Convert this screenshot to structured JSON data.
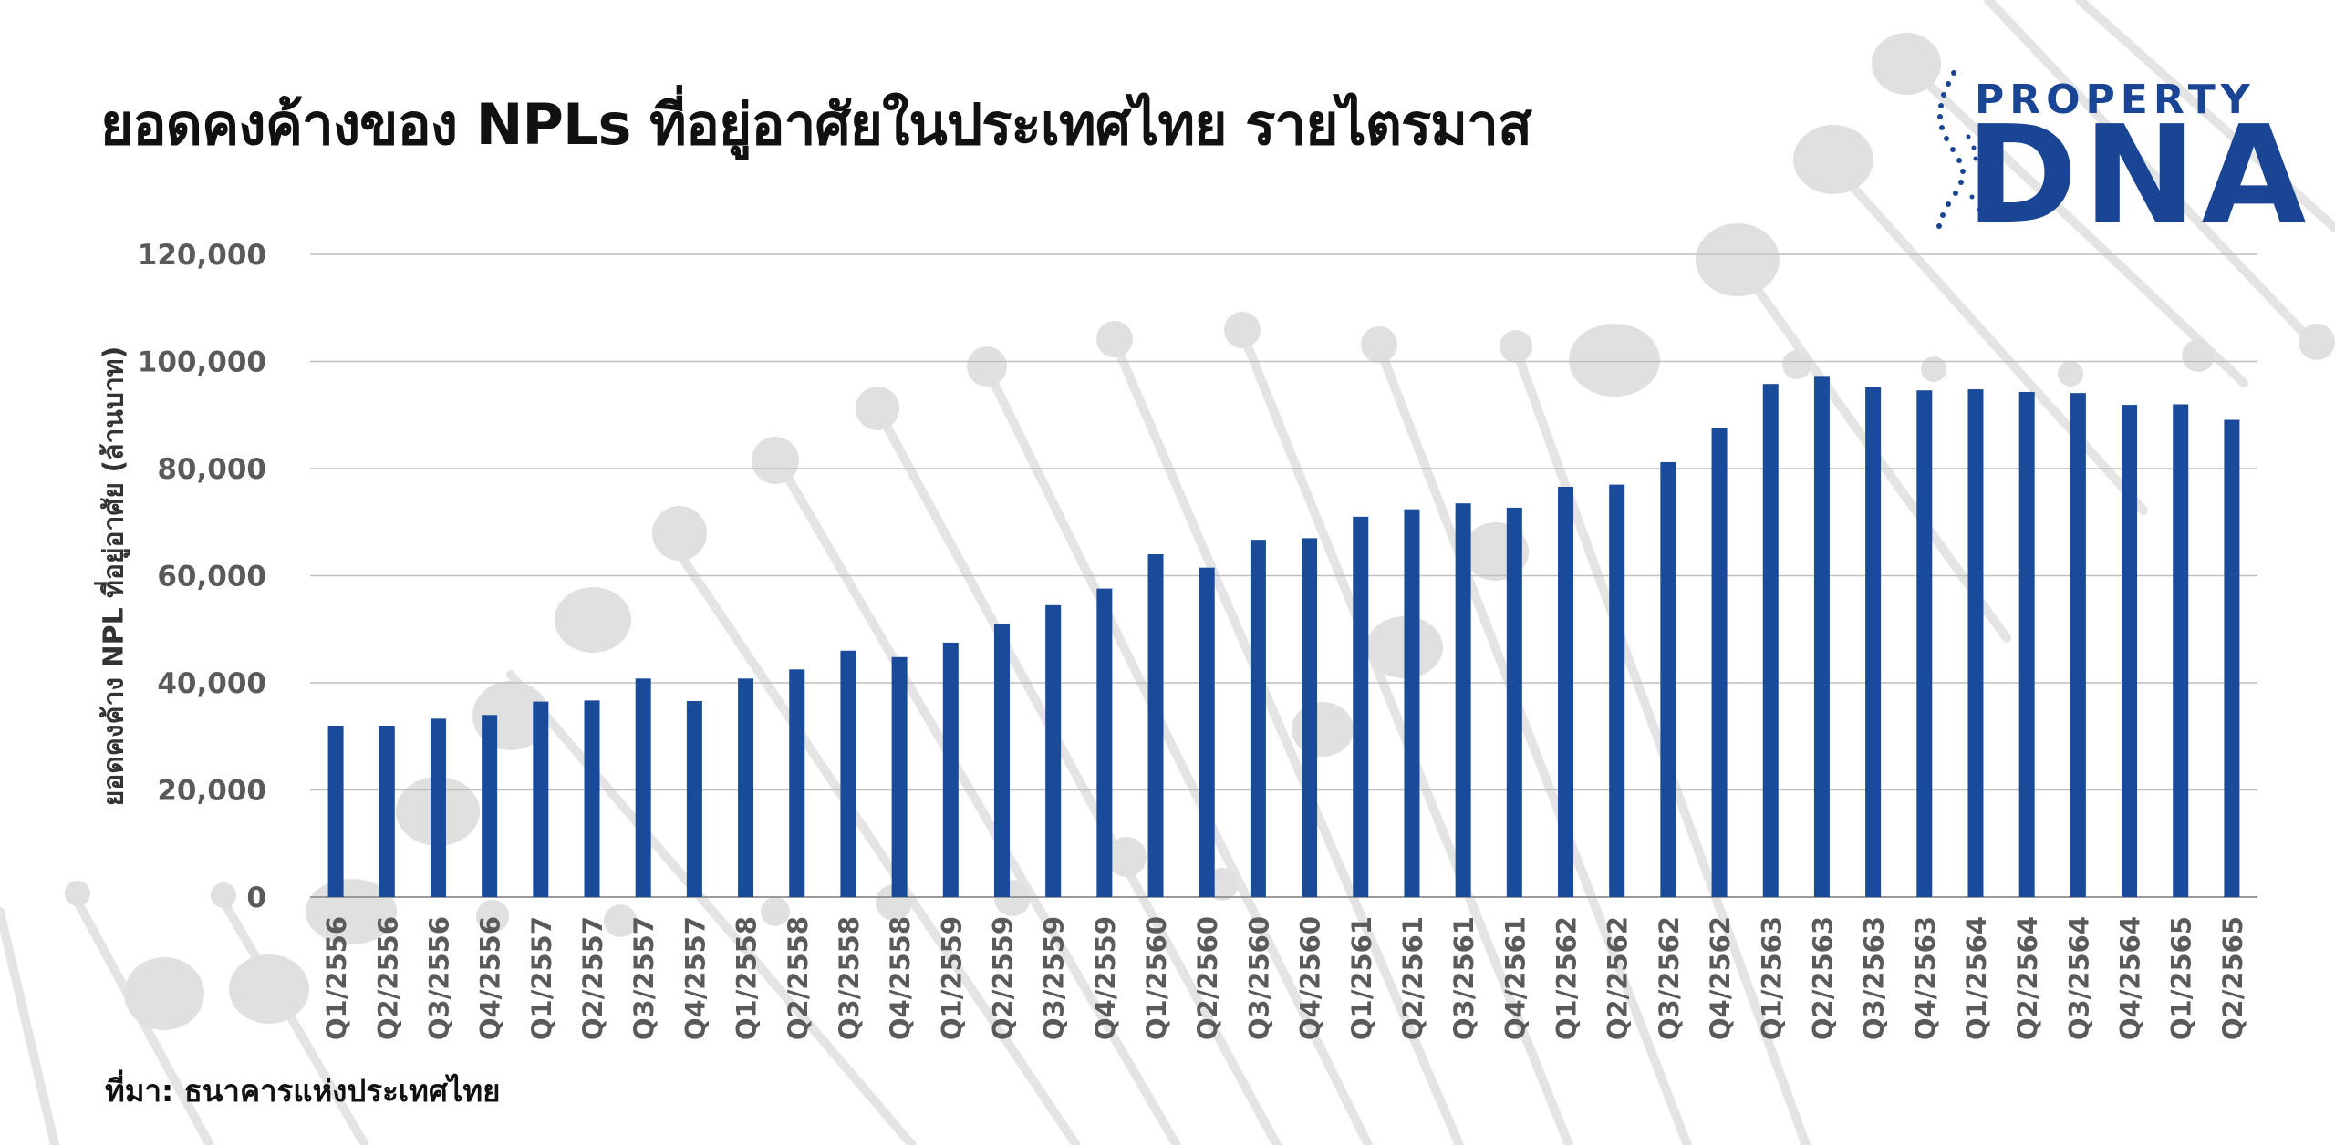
{
  "header": {
    "title": "ยอดคงค้างของ NPLs ที่อยู่อาศัยในประเทศไทย รายไตรมาส"
  },
  "logo": {
    "line1": "PROPERTY",
    "line2": "DNA"
  },
  "footer": {
    "source": "ที่มา: ธนาคารแห่งประเทศไทย"
  },
  "colors": {
    "bar": "#1a4a9a",
    "grid": "#bfbfbf",
    "logo": "#1a4494"
  },
  "chart_data": {
    "type": "bar",
    "title": "ยอดคงค้างของ NPLs ที่อยู่อาศัยในประเทศไทย รายไตรมาส",
    "xlabel": "",
    "ylabel": "ยอดคงค้าง NPL ที่อยู่อาศัย (ล้านบาท)",
    "ylim": [
      0,
      120000
    ],
    "yticks": [
      "0",
      "20,000",
      "40,000",
      "60,000",
      "80,000",
      "100,000",
      "120,000"
    ],
    "grid": true,
    "categories": [
      "Q1/2556",
      "Q2/2556",
      "Q3/2556",
      "Q4/2556",
      "Q1/2557",
      "Q2/2557",
      "Q3/2557",
      "Q4/2557",
      "Q1/2558",
      "Q2/2558",
      "Q3/2558",
      "Q4/2558",
      "Q1/2559",
      "Q2/2559",
      "Q3/2559",
      "Q4/2559",
      "Q1/2560",
      "Q2/2560",
      "Q3/2560",
      "Q4/2560",
      "Q1/2561",
      "Q2/2561",
      "Q3/2561",
      "Q4/2561",
      "Q1/2562",
      "Q2/2562",
      "Q3/2562",
      "Q4/2562",
      "Q1/2563",
      "Q2/2563",
      "Q3/2563",
      "Q4/2563",
      "Q1/2564",
      "Q2/2564",
      "Q3/2564",
      "Q4/2564",
      "Q1/2565",
      "Q2/2565"
    ],
    "values": [
      32000,
      32000,
      33300,
      34000,
      36500,
      36700,
      40800,
      36600,
      40800,
      42500,
      46000,
      44800,
      47500,
      51000,
      54500,
      57600,
      64000,
      61500,
      66700,
      67000,
      71000,
      72400,
      73500,
      72700,
      76600,
      77000,
      81200,
      87600,
      95800,
      97300,
      95200,
      94600,
      94800,
      94300,
      94100,
      91900,
      92000,
      89100
    ]
  }
}
